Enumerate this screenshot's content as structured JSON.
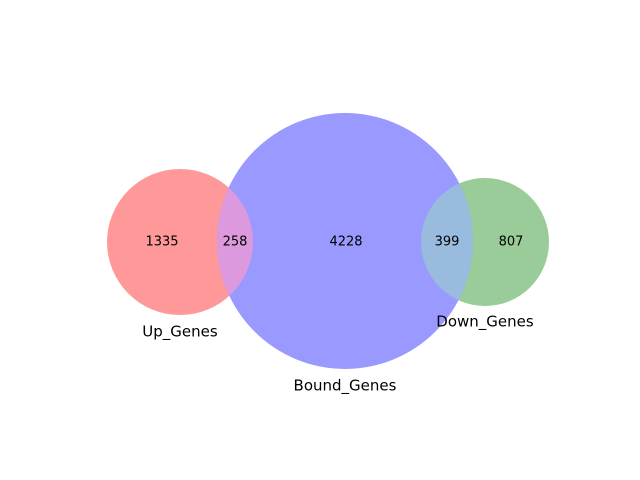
{
  "sets": {
    "up": {
      "label": "Up_Genes",
      "color": "#ff9999"
    },
    "bound": {
      "label": "Bound_Genes",
      "color": "#9999ff"
    },
    "down": {
      "label": "Down_Genes",
      "color": "#99cc99"
    }
  },
  "overlap_colors": {
    "up_bound": "#dd99dd",
    "bound_down": "#99bbdd"
  },
  "counts": {
    "up_only": "1335",
    "up_bound": "258",
    "bound_only": "4228",
    "bound_down": "399",
    "down_only": "807"
  }
}
